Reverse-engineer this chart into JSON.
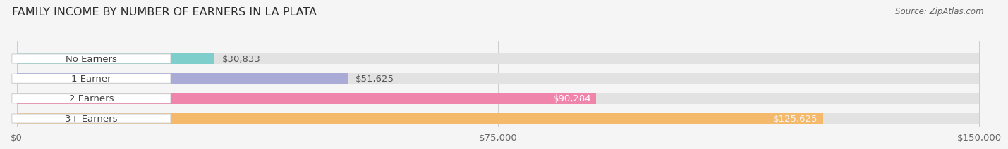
{
  "title": "FAMILY INCOME BY NUMBER OF EARNERS IN LA PLATA",
  "source": "Source: ZipAtlas.com",
  "categories": [
    "No Earners",
    "1 Earner",
    "2 Earners",
    "3+ Earners"
  ],
  "values": [
    30833,
    51625,
    90284,
    125625
  ],
  "bar_colors": [
    "#7ecfcc",
    "#aaaad6",
    "#f085ac",
    "#f5b96b"
  ],
  "value_label_colors": [
    "#555555",
    "#555555",
    "#ffffff",
    "#f5f5f5"
  ],
  "max_value": 150000,
  "x_ticks": [
    0,
    75000,
    150000
  ],
  "x_tick_labels": [
    "$0",
    "$75,000",
    "$150,000"
  ],
  "background_color": "#f5f5f5",
  "bar_bg_color": "#e2e2e2",
  "title_fontsize": 11.5,
  "source_fontsize": 8.5,
  "label_fontsize": 9.5,
  "value_fontsize": 9.5,
  "tick_fontsize": 9.5
}
